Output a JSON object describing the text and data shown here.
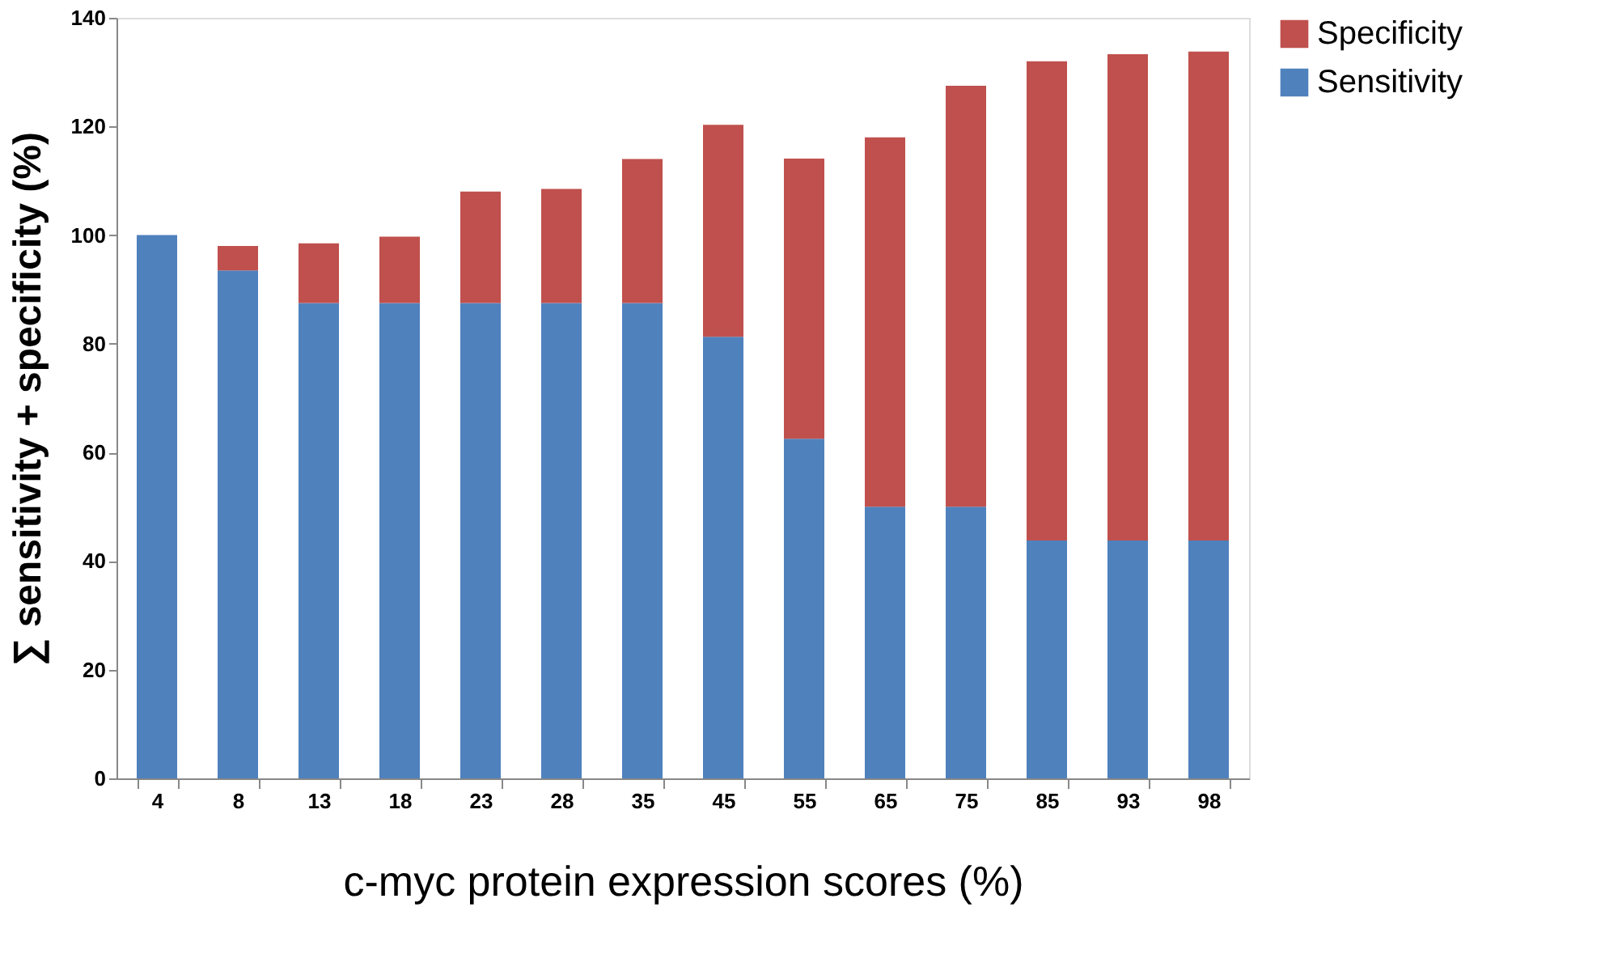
{
  "chart_data": {
    "type": "bar",
    "stacked": true,
    "xlabel": "c-myc protein expression scores (%)",
    "ylabel": "∑ sensitivity + specificity (%)",
    "categories": [
      "4",
      "8",
      "13",
      "18",
      "23",
      "28",
      "35",
      "45",
      "55",
      "65",
      "75",
      "85",
      "93",
      "98"
    ],
    "series": [
      {
        "name": "Sensitivity",
        "color": "#4f81bd",
        "values": [
          100,
          93.5,
          87.5,
          87.5,
          87.5,
          87.5,
          87.5,
          81.3,
          62.5,
          50,
          50,
          43.8,
          43.8,
          43.8
        ]
      },
      {
        "name": "Specificity",
        "color": "#c0504d",
        "values": [
          0,
          4.5,
          11,
          12.2,
          20.5,
          21,
          26.5,
          39,
          51.6,
          68,
          77.5,
          88.2,
          89.5,
          90
        ]
      }
    ],
    "ylim": [
      0,
      140
    ],
    "yticks": [
      0,
      20,
      40,
      60,
      80,
      100,
      120,
      140
    ],
    "grid": false,
    "legend": "right"
  }
}
